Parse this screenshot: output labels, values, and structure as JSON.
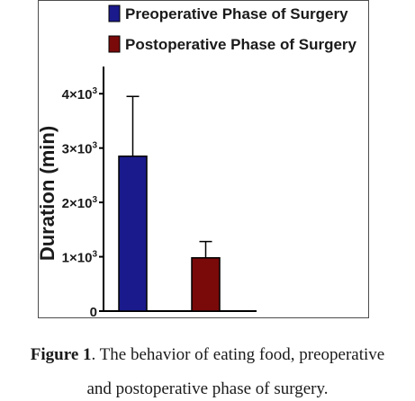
{
  "chart_data": {
    "type": "bar",
    "categories": [
      "Preoperative Phase of Surgery",
      "Postoperative Phase of Surgery"
    ],
    "values": [
      2850,
      980
    ],
    "errors": [
      1100,
      300
    ],
    "colors": [
      "#1a1a8c",
      "#7a0a0a"
    ],
    "ylabel": "Duration (min)",
    "ylim": [
      0,
      4500
    ],
    "yticks": [
      {
        "value": 0,
        "label": "0"
      },
      {
        "value": 1000,
        "label": "1×10"
      },
      {
        "value": 2000,
        "label": "2×10"
      },
      {
        "value": 3000,
        "label": "3×10"
      },
      {
        "value": 4000,
        "label": "4×10"
      }
    ],
    "tick_exponent": "3",
    "legend": [
      {
        "label": "Preoperative Phase of Surgery",
        "color": "#1a1a8c"
      },
      {
        "label": "Postoperative Phase of Surgery",
        "color": "#7a0a0a"
      }
    ],
    "legend_position": "top"
  },
  "caption": {
    "figure_label": "Figure 1",
    "text_line1": ". The behavior of eating food, preoperative",
    "text_line2": "and postoperative phase of surgery."
  }
}
